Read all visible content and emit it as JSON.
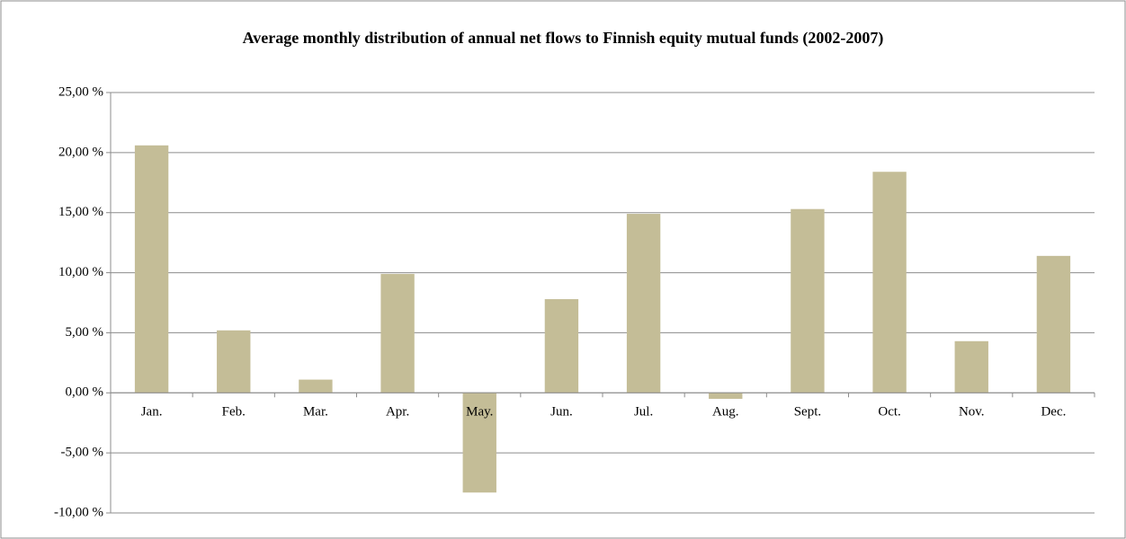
{
  "chart_data": {
    "type": "bar",
    "title": "Average monthly distribution of  annual net flows to Finnish equity mutual funds (2002-2007)",
    "categories": [
      "Jan.",
      "Feb.",
      "Mar.",
      "Apr.",
      "May.",
      "Jun.",
      "Jul.",
      "Aug.",
      "Sept.",
      "Oct.",
      "Nov.",
      "Dec."
    ],
    "values": [
      20.6,
      5.2,
      1.1,
      9.9,
      -8.3,
      7.8,
      14.9,
      -0.5,
      15.3,
      18.4,
      4.3,
      11.4
    ],
    "color": "#c4bd97",
    "ylim": [
      -10,
      25
    ],
    "yticks": [
      {
        "value": -10,
        "label": "-10,00 %"
      },
      {
        "value": -5,
        "label": "-5,00 %"
      },
      {
        "value": 0,
        "label": "0,00 %"
      },
      {
        "value": 5,
        "label": "5,00 %"
      },
      {
        "value": 10,
        "label": "10,00 %"
      },
      {
        "value": 15,
        "label": "15,00 %"
      },
      {
        "value": 20,
        "label": "20,00 %"
      },
      {
        "value": 25,
        "label": "25,00 %"
      }
    ],
    "grid": true
  }
}
